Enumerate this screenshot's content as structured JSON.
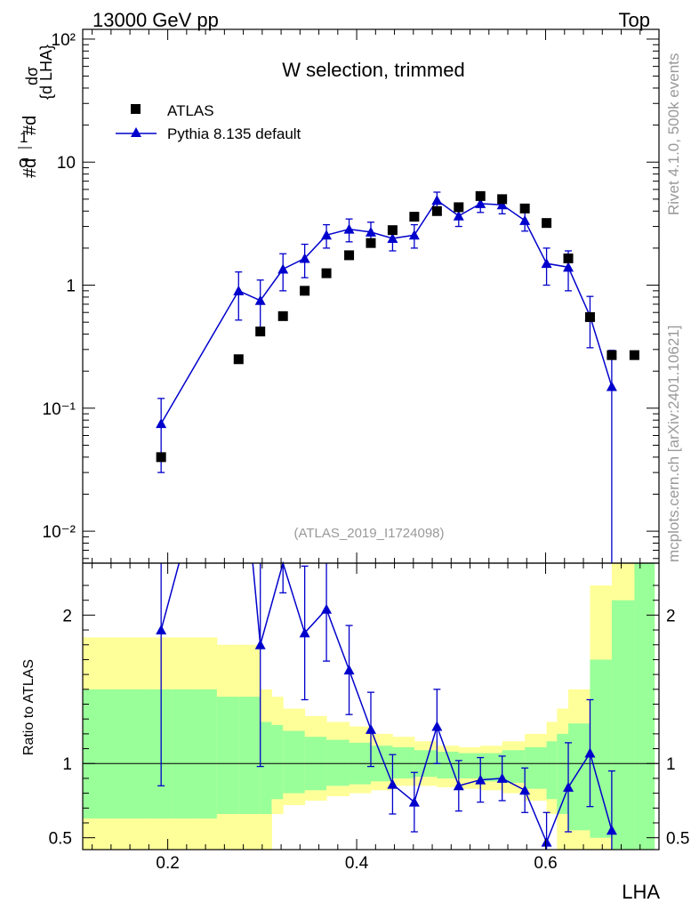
{
  "header": {
    "left": "13000 GeV pp",
    "right": "Top"
  },
  "side_labels": {
    "rivet": "Rivet 4.1.0,  500k events",
    "mcplots": "mcplots.cern.ch [arXiv:2401.10621]"
  },
  "chart_data": {
    "type": "scatter",
    "title": "W selection, trimmed",
    "analysis": "(ATLAS_2019_I1724098)",
    "xlabel": "LHA",
    "ylabel_main": "#d¹/σ #d dσ/{d LHA}",
    "ylabel_ratio": "Ratio to ATLAS",
    "xlim": [
      0.11,
      0.72
    ],
    "ylim_main": [
      0.0055,
      120
    ],
    "ylim_ratio": [
      0.42,
      2.35
    ],
    "log_y_main": true,
    "x_ticks": [
      "0.2",
      "0.4",
      "0.6"
    ],
    "y_ticks_main": [
      "10⁻²",
      "10⁻¹",
      "1",
      "10",
      "10²"
    ],
    "y_ticks_ratio": [
      "0.5",
      "1",
      "2"
    ],
    "legend": [
      "ATLAS",
      "Pythia 8.135 default"
    ],
    "legend_position": "top-left",
    "atlas": {
      "name": "ATLAS",
      "x": [
        0.193,
        0.275,
        0.298,
        0.322,
        0.345,
        0.368,
        0.392,
        0.415,
        0.438,
        0.461,
        0.485,
        0.508,
        0.531,
        0.554,
        0.578,
        0.601,
        0.624,
        0.647,
        0.67,
        0.694
      ],
      "y": [
        0.04,
        0.25,
        0.42,
        0.56,
        0.9,
        1.25,
        1.75,
        2.2,
        2.8,
        3.6,
        4.0,
        4.3,
        5.3,
        5.0,
        4.2,
        3.2,
        1.65,
        0.55,
        0.27,
        0.27
      ]
    },
    "pythia": {
      "name": "Pythia 8.135 default",
      "x": [
        0.193,
        0.275,
        0.298,
        0.322,
        0.345,
        0.368,
        0.392,
        0.415,
        0.438,
        0.461,
        0.485,
        0.508,
        0.531,
        0.554,
        0.578,
        0.601,
        0.624,
        0.647,
        0.67
      ],
      "y": [
        0.075,
        0.9,
        0.75,
        1.35,
        1.65,
        2.55,
        2.85,
        2.7,
        2.4,
        2.55,
        4.9,
        3.65,
        4.6,
        4.5,
        3.35,
        1.5,
        1.4,
        0.56,
        0.15
      ],
      "err": [
        0.045,
        0.38,
        0.35,
        0.45,
        0.5,
        0.55,
        0.6,
        0.55,
        0.5,
        0.55,
        0.8,
        0.65,
        0.7,
        0.7,
        0.6,
        0.5,
        0.5,
        0.25,
        0.145
      ]
    },
    "ratio": {
      "x": [
        0.193,
        0.298,
        0.322,
        0.345,
        0.368,
        0.392,
        0.415,
        0.438,
        0.461,
        0.485,
        0.508,
        0.531,
        0.554,
        0.578,
        0.601,
        0.624,
        0.647,
        0.67
      ],
      "y": [
        1.9,
        1.8,
        2.4,
        1.88,
        2.04,
        1.63,
        1.23,
        0.86,
        0.74,
        1.25,
        0.85,
        0.89,
        0.9,
        0.82,
        0.47,
        0.84,
        1.07,
        0.55
      ],
      "err": [
        1.05,
        0.82,
        0.25,
        0.45,
        0.35,
        0.3,
        0.25,
        0.2,
        0.2,
        0.25,
        0.17,
        0.15,
        0.15,
        0.15,
        0.2,
        0.3,
        0.36,
        0.4
      ],
      "offscale_line_to": [
        0.212,
        2.35
      ],
      "offscale_line_from": [
        0.29,
        2.35
      ]
    },
    "bands": {
      "edges": [
        0.11,
        0.181,
        0.205,
        0.23,
        0.252,
        0.275,
        0.298,
        0.31,
        0.322,
        0.345,
        0.368,
        0.392,
        0.415,
        0.438,
        0.461,
        0.485,
        0.508,
        0.531,
        0.554,
        0.578,
        0.601,
        0.612,
        0.624,
        0.647,
        0.67,
        0.694,
        0.715
      ],
      "yellow_lo": [
        0.42,
        0.42,
        0.42,
        0.42,
        0.42,
        0.42,
        0.42,
        0.66,
        0.72,
        0.75,
        0.78,
        0.8,
        0.82,
        0.85,
        0.85,
        0.84,
        0.83,
        0.82,
        0.8,
        0.75,
        0.66,
        0.42,
        0.42,
        0.42,
        0.42,
        0.42
      ],
      "yellow_hi": [
        1.85,
        1.85,
        1.85,
        1.85,
        1.8,
        1.8,
        1.5,
        1.45,
        1.37,
        1.32,
        1.28,
        1.25,
        1.2,
        1.18,
        1.15,
        1.12,
        1.11,
        1.12,
        1.15,
        1.2,
        1.28,
        1.37,
        1.5,
        2.2,
        2.35,
        2.35
      ],
      "green_lo": [
        0.63,
        0.63,
        0.63,
        0.63,
        0.66,
        0.66,
        0.66,
        0.76,
        0.8,
        0.82,
        0.85,
        0.86,
        0.88,
        0.9,
        0.91,
        0.9,
        0.9,
        0.88,
        0.87,
        0.83,
        0.76,
        0.66,
        0.55,
        0.5,
        0.42,
        0.42
      ],
      "green_hi": [
        1.5,
        1.5,
        1.5,
        1.5,
        1.45,
        1.45,
        1.28,
        1.26,
        1.22,
        1.18,
        1.16,
        1.14,
        1.12,
        1.11,
        1.09,
        1.08,
        1.07,
        1.07,
        1.09,
        1.11,
        1.15,
        1.2,
        1.27,
        1.7,
        2.1,
        2.35
      ]
    }
  },
  "colors": {
    "atlas": "#000000",
    "pythia": "#0000cc",
    "band_yellow": "#ffff99",
    "band_green": "#99ff99",
    "grey_text": "#999999"
  }
}
